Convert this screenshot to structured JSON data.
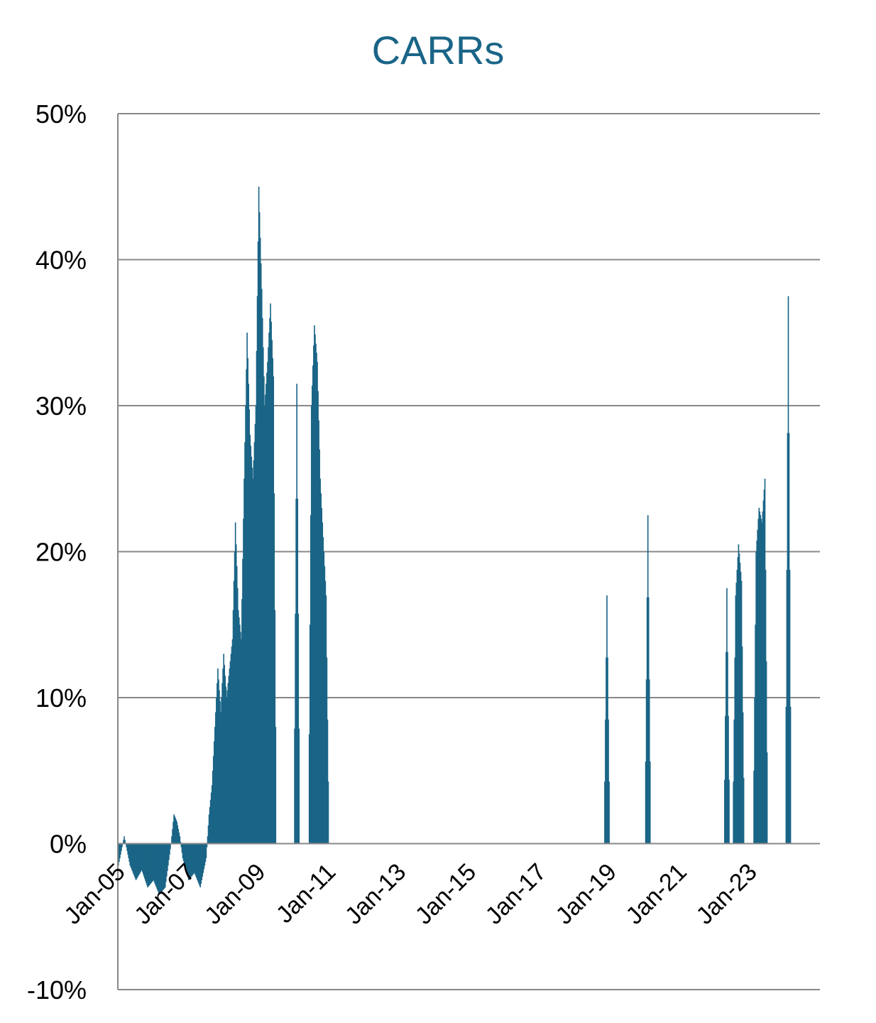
{
  "chart_data": {
    "type": "area",
    "title": "CARRs",
    "xlabel": "",
    "ylabel": "",
    "color": "#1a6587",
    "ylim": [
      -10,
      50
    ],
    "y_ticks": [
      {
        "value": 50,
        "label": "50%"
      },
      {
        "value": 40,
        "label": "40%"
      },
      {
        "value": 30,
        "label": "30%"
      },
      {
        "value": 20,
        "label": "20%"
      },
      {
        "value": 10,
        "label": "10%"
      },
      {
        "value": 0,
        "label": "0%"
      },
      {
        "value": -10,
        "label": "-10%"
      }
    ],
    "x_ticks": [
      "Jan-05",
      "Jan-07",
      "Jan-09",
      "Jan-11",
      "Jan-13",
      "Jan-15",
      "Jan-17",
      "Jan-19",
      "Jan-21",
      "Jan-23"
    ],
    "x_range": [
      "2005-01",
      "2025-01"
    ],
    "grid": true,
    "legend": "none",
    "series": [
      {
        "points": [
          [
            "2005-01",
            -1.5
          ],
          [
            "2005-03",
            0.5
          ],
          [
            "2005-05",
            -1.5
          ],
          [
            "2005-07",
            -2.5
          ],
          [
            "2005-09",
            -1.8
          ],
          [
            "2005-11",
            -3.0
          ],
          [
            "2006-01",
            -2.5
          ],
          [
            "2006-03",
            -3.5
          ],
          [
            "2006-05",
            -3.0
          ],
          [
            "2006-07",
            0.0
          ],
          [
            "2006-08",
            2.0
          ],
          [
            "2006-09",
            1.5
          ],
          [
            "2006-10",
            0.5
          ],
          [
            "2006-11",
            -1.0
          ],
          [
            "2007-01",
            -2.5
          ],
          [
            "2007-03",
            -2.0
          ],
          [
            "2007-05",
            -3.0
          ],
          [
            "2007-07",
            -1.0
          ],
          [
            "2007-08",
            2.0
          ],
          [
            "2007-09",
            4.0
          ],
          [
            "2007-10",
            8.0
          ],
          [
            "2007-11",
            12.0
          ],
          [
            "2007-12",
            9.0
          ],
          [
            "2008-01",
            13.0
          ],
          [
            "2008-02",
            10.0
          ],
          [
            "2008-03",
            12.0
          ],
          [
            "2008-04",
            14.0
          ],
          [
            "2008-05",
            22.0
          ],
          [
            "2008-06",
            16.0
          ],
          [
            "2008-07",
            14.0
          ],
          [
            "2008-08",
            25.0
          ],
          [
            "2008-09",
            35.0
          ],
          [
            "2008-10",
            28.0
          ],
          [
            "2008-11",
            25.0
          ],
          [
            "2008-12",
            30.0
          ],
          [
            "2009-01",
            45.0
          ],
          [
            "2009-02",
            38.0
          ],
          [
            "2009-03",
            30.0
          ],
          [
            "2009-04",
            33.0
          ],
          [
            "2009-05",
            37.0
          ],
          [
            "2009-06",
            32.0
          ],
          [
            "2009-07",
            0.0
          ],
          [
            "2010-01",
            0.0
          ],
          [
            "2010-02",
            31.5
          ],
          [
            "2010-03",
            0.0
          ],
          [
            "2010-06",
            0.0
          ],
          [
            "2010-07",
            30.0
          ],
          [
            "2010-08",
            35.5
          ],
          [
            "2010-09",
            33.0
          ],
          [
            "2010-10",
            25.0
          ],
          [
            "2010-11",
            21.0
          ],
          [
            "2010-12",
            17.0
          ],
          [
            "2011-01",
            0.0
          ],
          [
            "2018-11",
            0.0
          ],
          [
            "2018-12",
            17.0
          ],
          [
            "2019-01",
            0.0
          ],
          [
            "2020-01",
            0.0
          ],
          [
            "2020-02",
            22.5
          ],
          [
            "2020-03",
            0.0
          ],
          [
            "2022-04",
            0.0
          ],
          [
            "2022-05",
            17.5
          ],
          [
            "2022-06",
            0.0
          ],
          [
            "2022-07",
            0.0
          ],
          [
            "2022-08",
            17.0
          ],
          [
            "2022-09",
            20.5
          ],
          [
            "2022-10",
            18.0
          ],
          [
            "2022-11",
            0.0
          ],
          [
            "2023-02",
            0.0
          ],
          [
            "2023-03",
            20.0
          ],
          [
            "2023-04",
            23.0
          ],
          [
            "2023-05",
            22.0
          ],
          [
            "2023-06",
            25.0
          ],
          [
            "2023-07",
            0.0
          ],
          [
            "2024-01",
            0.0
          ],
          [
            "2024-02",
            37.5
          ],
          [
            "2024-03",
            0.0
          ],
          [
            "2025-01",
            0.0
          ]
        ]
      }
    ]
  }
}
